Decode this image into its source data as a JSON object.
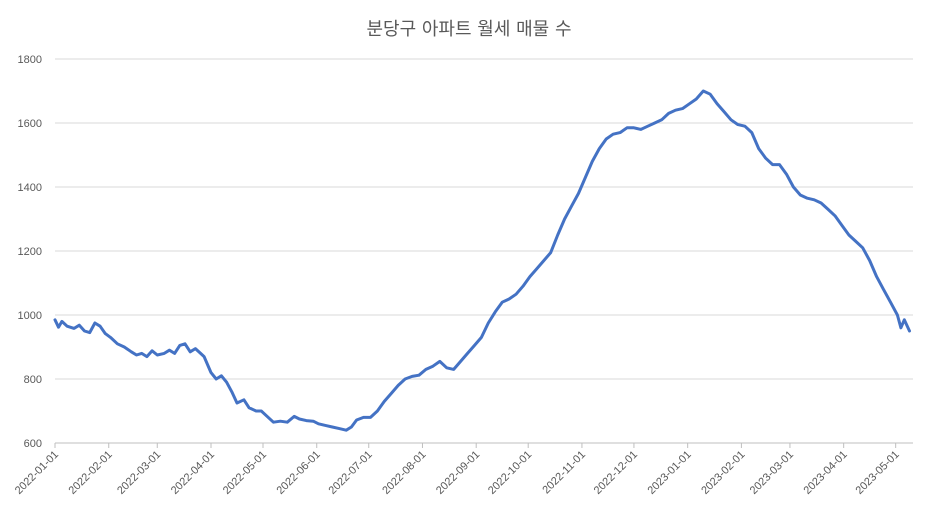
{
  "chart_data": {
    "type": "line",
    "title": "분당구 아파트 월세 매물 수",
    "xlabel": "",
    "ylabel": "",
    "ylim": [
      600,
      1800
    ],
    "yticks": [
      600,
      800,
      1000,
      1200,
      1400,
      1600,
      1800
    ],
    "grid": true,
    "legend": "none",
    "x_tick_labels": [
      "2022-01-01",
      "2022-02-01",
      "2022-03-01",
      "2022-04-01",
      "2022-05-01",
      "2022-06-01",
      "2022-07-01",
      "2022-08-01",
      "2022-09-01",
      "2022-10-01",
      "2022-11-01",
      "2022-12-01",
      "2023-01-01",
      "2023-02-01",
      "2023-03-01",
      "2023-04-01",
      "2023-05-01"
    ],
    "line_color": "#4472c4",
    "series": [
      {
        "name": "",
        "points": [
          [
            "2022-01-01",
            985
          ],
          [
            "2022-01-03",
            962
          ],
          [
            "2022-01-05",
            980
          ],
          [
            "2022-01-08",
            965
          ],
          [
            "2022-01-12",
            958
          ],
          [
            "2022-01-15",
            968
          ],
          [
            "2022-01-18",
            950
          ],
          [
            "2022-01-21",
            945
          ],
          [
            "2022-01-24",
            975
          ],
          [
            "2022-01-27",
            965
          ],
          [
            "2022-01-30",
            942
          ],
          [
            "2022-02-02",
            930
          ],
          [
            "2022-02-06",
            910
          ],
          [
            "2022-02-10",
            900
          ],
          [
            "2022-02-14",
            885
          ],
          [
            "2022-02-17",
            875
          ],
          [
            "2022-02-20",
            880
          ],
          [
            "2022-02-23",
            870
          ],
          [
            "2022-02-26",
            888
          ],
          [
            "2022-03-01",
            875
          ],
          [
            "2022-03-05",
            880
          ],
          [
            "2022-03-08",
            890
          ],
          [
            "2022-03-11",
            880
          ],
          [
            "2022-03-14",
            905
          ],
          [
            "2022-03-17",
            910
          ],
          [
            "2022-03-20",
            885
          ],
          [
            "2022-03-23",
            895
          ],
          [
            "2022-03-26",
            880
          ],
          [
            "2022-03-28",
            870
          ],
          [
            "2022-04-01",
            820
          ],
          [
            "2022-04-04",
            800
          ],
          [
            "2022-04-07",
            810
          ],
          [
            "2022-04-10",
            790
          ],
          [
            "2022-04-13",
            760
          ],
          [
            "2022-04-16",
            725
          ],
          [
            "2022-04-20",
            735
          ],
          [
            "2022-04-23",
            710
          ],
          [
            "2022-04-27",
            700
          ],
          [
            "2022-04-30",
            700
          ],
          [
            "2022-05-03",
            685
          ],
          [
            "2022-05-07",
            665
          ],
          [
            "2022-05-11",
            668
          ],
          [
            "2022-05-15",
            665
          ],
          [
            "2022-05-19",
            683
          ],
          [
            "2022-05-22",
            675
          ],
          [
            "2022-05-26",
            670
          ],
          [
            "2022-05-30",
            668
          ],
          [
            "2022-06-02",
            660
          ],
          [
            "2022-06-06",
            655
          ],
          [
            "2022-06-10",
            650
          ],
          [
            "2022-06-14",
            645
          ],
          [
            "2022-06-18",
            640
          ],
          [
            "2022-06-21",
            650
          ],
          [
            "2022-06-24",
            672
          ],
          [
            "2022-06-28",
            680
          ],
          [
            "2022-07-02",
            680
          ],
          [
            "2022-07-06",
            700
          ],
          [
            "2022-07-10",
            730
          ],
          [
            "2022-07-14",
            755
          ],
          [
            "2022-07-18",
            780
          ],
          [
            "2022-07-22",
            800
          ],
          [
            "2022-07-26",
            808
          ],
          [
            "2022-07-30",
            812
          ],
          [
            "2022-08-03",
            830
          ],
          [
            "2022-08-07",
            840
          ],
          [
            "2022-08-11",
            855
          ],
          [
            "2022-08-15",
            835
          ],
          [
            "2022-08-19",
            830
          ],
          [
            "2022-08-23",
            855
          ],
          [
            "2022-08-27",
            880
          ],
          [
            "2022-08-31",
            905
          ],
          [
            "2022-09-04",
            930
          ],
          [
            "2022-09-08",
            975
          ],
          [
            "2022-09-12",
            1010
          ],
          [
            "2022-09-16",
            1040
          ],
          [
            "2022-09-20",
            1050
          ],
          [
            "2022-09-24",
            1065
          ],
          [
            "2022-09-28",
            1090
          ],
          [
            "2022-10-02",
            1120
          ],
          [
            "2022-10-06",
            1145
          ],
          [
            "2022-10-10",
            1170
          ],
          [
            "2022-10-14",
            1195
          ],
          [
            "2022-10-18",
            1250
          ],
          [
            "2022-10-22",
            1300
          ],
          [
            "2022-10-26",
            1340
          ],
          [
            "2022-10-30",
            1380
          ],
          [
            "2022-11-03",
            1430
          ],
          [
            "2022-11-07",
            1480
          ],
          [
            "2022-11-11",
            1520
          ],
          [
            "2022-11-15",
            1550
          ],
          [
            "2022-11-19",
            1565
          ],
          [
            "2022-11-23",
            1570
          ],
          [
            "2022-11-27",
            1585
          ],
          [
            "2022-12-01",
            1585
          ],
          [
            "2022-12-05",
            1580
          ],
          [
            "2022-12-09",
            1590
          ],
          [
            "2022-12-13",
            1600
          ],
          [
            "2022-12-17",
            1610
          ],
          [
            "2022-12-21",
            1630
          ],
          [
            "2022-12-25",
            1640
          ],
          [
            "2022-12-29",
            1645
          ],
          [
            "2023-01-02",
            1660
          ],
          [
            "2023-01-06",
            1675
          ],
          [
            "2023-01-10",
            1700
          ],
          [
            "2023-01-14",
            1690
          ],
          [
            "2023-01-18",
            1660
          ],
          [
            "2023-01-22",
            1635
          ],
          [
            "2023-01-26",
            1610
          ],
          [
            "2023-01-30",
            1595
          ],
          [
            "2023-02-03",
            1590
          ],
          [
            "2023-02-07",
            1570
          ],
          [
            "2023-02-11",
            1520
          ],
          [
            "2023-02-15",
            1490
          ],
          [
            "2023-02-19",
            1470
          ],
          [
            "2023-02-23",
            1470
          ],
          [
            "2023-02-27",
            1440
          ],
          [
            "2023-03-03",
            1400
          ],
          [
            "2023-03-07",
            1375
          ],
          [
            "2023-03-11",
            1365
          ],
          [
            "2023-03-15",
            1360
          ],
          [
            "2023-03-19",
            1350
          ],
          [
            "2023-03-23",
            1330
          ],
          [
            "2023-03-27",
            1310
          ],
          [
            "2023-03-31",
            1280
          ],
          [
            "2023-04-04",
            1250
          ],
          [
            "2023-04-08",
            1230
          ],
          [
            "2023-04-12",
            1210
          ],
          [
            "2023-04-16",
            1170
          ],
          [
            "2023-04-20",
            1120
          ],
          [
            "2023-04-24",
            1080
          ],
          [
            "2023-04-28",
            1040
          ],
          [
            "2023-05-02",
            1000
          ],
          [
            "2023-05-04",
            960
          ],
          [
            "2023-05-06",
            985
          ],
          [
            "2023-05-09",
            950
          ]
        ]
      }
    ]
  }
}
